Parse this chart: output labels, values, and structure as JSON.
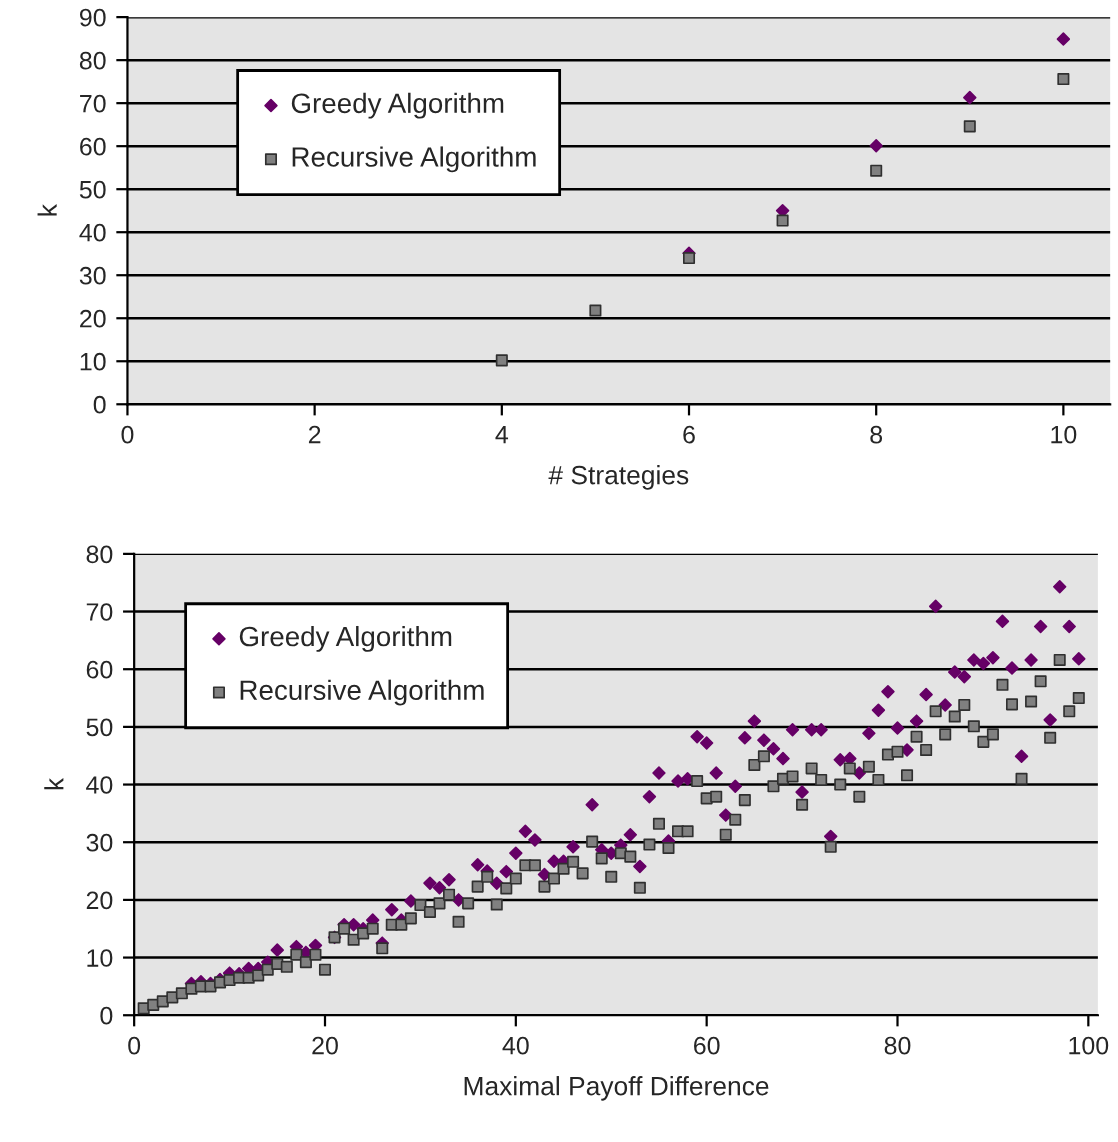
{
  "chart_data": [
    {
      "type": "scatter",
      "xlabel": "# Strategies",
      "ylabel": "k",
      "xlim": [
        0,
        10.5
      ],
      "ylim": [
        0,
        90
      ],
      "xticks": [
        0,
        2,
        4,
        6,
        8,
        10
      ],
      "yticks": [
        0,
        10,
        20,
        30,
        40,
        50,
        60,
        70,
        80,
        90
      ],
      "grid": "y",
      "legend": "top left",
      "series": [
        {
          "name": "Greedy Algorithm",
          "color": "#660066",
          "marker": "diamond",
          "x": [
            6,
            7,
            8,
            9,
            10
          ],
          "values": [
            35.1,
            45,
            60.1,
            71.3,
            84.9
          ]
        },
        {
          "name": "Recursive Algorithm",
          "color": "#808080",
          "marker": "square",
          "x": [
            4,
            5,
            6,
            7,
            8,
            9,
            10
          ],
          "values": [
            10.2,
            21.8,
            34,
            42.7,
            54.3,
            64.6,
            75.6
          ]
        }
      ]
    },
    {
      "type": "scatter",
      "xlabel": "Maximal Payoff Difference",
      "ylabel": "k",
      "xlim": [
        0,
        101
      ],
      "ylim": [
        0,
        80
      ],
      "xticks": [
        0,
        20,
        40,
        60,
        80,
        100
      ],
      "yticks": [
        0,
        10,
        20,
        30,
        40,
        50,
        60,
        70,
        80
      ],
      "grid": "y",
      "legend": "top left",
      "series": [
        {
          "name": "Greedy Algorithm",
          "color": "#660066",
          "marker": "diamond",
          "x": [
            6,
            7,
            8,
            9,
            10,
            11,
            12,
            13,
            14,
            15,
            17,
            18,
            19,
            21,
            22,
            23,
            24,
            25,
            26,
            27,
            28,
            29,
            31,
            32,
            33,
            34,
            36,
            37,
            38,
            39,
            40,
            41,
            42,
            43,
            44,
            45,
            46,
            48,
            49,
            50,
            51,
            52,
            53,
            54,
            55,
            56,
            57,
            58,
            59,
            60,
            61,
            62,
            63,
            64,
            65,
            66,
            67,
            68,
            69,
            70,
            71,
            72,
            73,
            74,
            75,
            76,
            77,
            78,
            79,
            80,
            81,
            82,
            83,
            84,
            85,
            86,
            87,
            88,
            89,
            90,
            91,
            92,
            93,
            94,
            95,
            96,
            97,
            98,
            99
          ],
          "values": [
            5.5,
            5.8,
            5.5,
            6.2,
            7.3,
            7.2,
            8.1,
            8.1,
            9.2,
            11.3,
            11.9,
            10.9,
            12.1,
            13.5,
            15.7,
            15.7,
            15,
            16.5,
            12.5,
            18.3,
            16.5,
            19.8,
            22.9,
            22.1,
            23.5,
            20,
            26.1,
            25,
            22.9,
            24.9,
            28.1,
            31.9,
            30.4,
            24.4,
            26.7,
            26.7,
            29.2,
            36.5,
            28.7,
            28.1,
            29.5,
            31.3,
            25.8,
            37.9,
            42,
            30.2,
            40.6,
            41,
            48.3,
            47.2,
            42,
            34.7,
            39.7,
            48.1,
            51,
            47.7,
            46.2,
            44.5,
            49.5,
            38.7,
            49.5,
            49.5,
            31,
            44.3,
            44.5,
            42,
            48.9,
            52.9,
            56.1,
            49.8,
            46,
            51,
            55.6,
            70.9,
            53.8,
            59.5,
            58.7,
            61.6,
            61,
            62,
            68.3,
            60.2,
            44.9,
            61.6,
            67.4,
            51.2,
            74.3,
            67.4,
            61.8
          ]
        },
        {
          "name": "Recursive Algorithm",
          "color": "#808080",
          "marker": "square",
          "x": [
            1,
            2,
            3,
            4,
            5,
            6,
            7,
            8,
            9,
            10,
            11,
            12,
            13,
            14,
            15,
            16,
            17,
            18,
            19,
            20,
            21,
            22,
            23,
            24,
            25,
            26,
            27,
            28,
            29,
            30,
            31,
            32,
            33,
            34,
            35,
            36,
            37,
            38,
            39,
            40,
            41,
            42,
            43,
            44,
            45,
            46,
            47,
            48,
            49,
            50,
            51,
            52,
            53,
            54,
            55,
            56,
            57,
            58,
            59,
            60,
            61,
            62,
            63,
            64,
            65,
            66,
            67,
            68,
            69,
            70,
            71,
            72,
            73,
            74,
            75,
            76,
            77,
            78,
            79,
            80,
            81,
            82,
            83,
            84,
            85,
            86,
            87,
            88,
            89,
            90,
            91,
            92,
            93,
            94,
            95,
            96,
            97,
            98,
            99
          ],
          "values": [
            1.2,
            1.8,
            2.4,
            3.1,
            3.8,
            4.6,
            5,
            5,
            5.7,
            6.1,
            6.5,
            6.5,
            6.9,
            7.9,
            8.9,
            8.4,
            10.5,
            9.2,
            10.5,
            7.9,
            13.5,
            15,
            13.1,
            14.2,
            15,
            11.6,
            15.7,
            15.7,
            16.8,
            19.1,
            17.9,
            19.4,
            20.9,
            16.2,
            19.4,
            22.3,
            24,
            19.2,
            22,
            23.7,
            26,
            26,
            22.3,
            23.7,
            25.4,
            26.6,
            24.6,
            30.1,
            27.2,
            24,
            28.1,
            27.5,
            22.1,
            29.6,
            33.2,
            29,
            31.9,
            31.9,
            40.6,
            37.6,
            37.9,
            31.3,
            33.9,
            37.3,
            43.4,
            44.9,
            39.7,
            41,
            41.4,
            36.5,
            42.8,
            40.8,
            29.2,
            40,
            42.8,
            37.9,
            43.1,
            40.8,
            45.2,
            45.7,
            41.6,
            48.3,
            46,
            52.7,
            48.7,
            51.8,
            53.8,
            50.1,
            47.4,
            48.7,
            57.3,
            53.9,
            41,
            54.4,
            57.9,
            48.1,
            61.6,
            52.7,
            55
          ]
        }
      ]
    }
  ]
}
